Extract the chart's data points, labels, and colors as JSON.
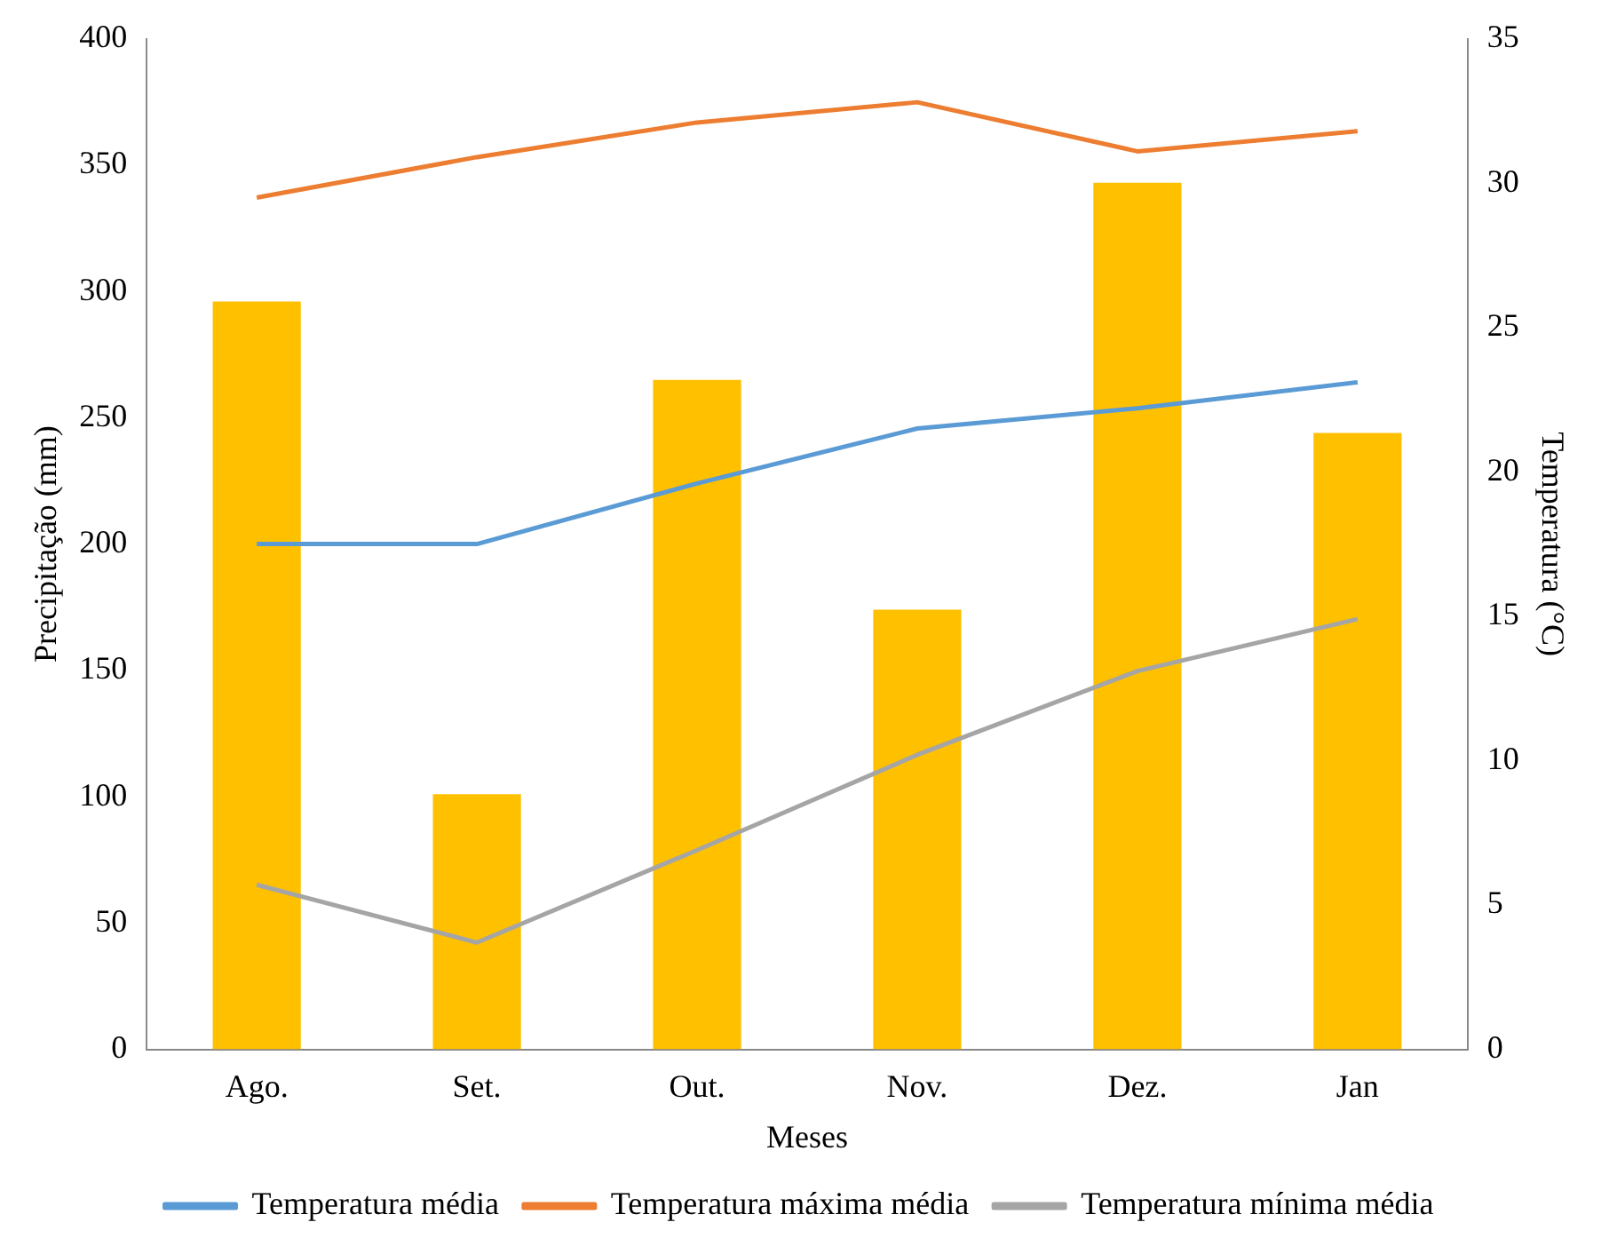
{
  "chart_data": {
    "type": "bar",
    "xlabel": "Meses",
    "ylabel": "Precipitação (mm)",
    "y2label": "Temperatura (°C)",
    "categories": [
      "Ago.",
      "Set.",
      "Out.",
      "Nov.",
      "Dez.",
      "Jan"
    ],
    "series": [
      {
        "color": "#ffc000",
        "values": [
          296,
          101,
          265,
          174,
          343,
          244
        ]
      },
      {
        "type": "line",
        "name": "Temperatura média",
        "color": "#5b9bd5",
        "axis": "y2",
        "values": [
          17.5,
          17.5,
          19.6,
          21.5,
          22.2,
          23.1
        ]
      },
      {
        "type": "line",
        "name": "Temperatura máxima média",
        "color": "#ed7d31",
        "axis": "y2",
        "values": [
          29.5,
          30.9,
          32.1,
          32.8,
          31.1,
          31.8
        ]
      },
      {
        "type": "line",
        "name": "Temperatura mínima média",
        "color": "#a5a5a5",
        "axis": "y2",
        "values": [
          5.7,
          3.7,
          6.9,
          10.2,
          13.1,
          14.9
        ]
      }
    ],
    "ylim": [
      0,
      400
    ],
    "yticks": [
      0,
      50,
      100,
      150,
      200,
      250,
      300,
      350,
      400
    ],
    "y2lim": [
      0,
      35
    ],
    "y2ticks": [
      0,
      5,
      10,
      15,
      20,
      25,
      30,
      35
    ],
    "grid": false,
    "legend": "bottom",
    "marker": "none"
  }
}
